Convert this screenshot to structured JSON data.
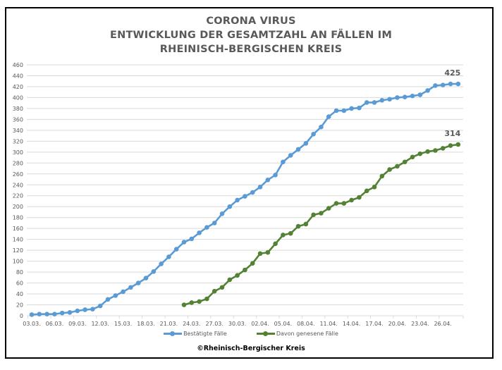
{
  "chart_data": {
    "type": "line",
    "title_lines": [
      "CORONA VIRUS",
      "ENTWICKLUNG DER GESAMTZAHL AN FÄLLEN IM",
      "RHEINISCH-BERGISCHEN KREIS"
    ],
    "xlabel": "",
    "ylabel": "",
    "ylim": [
      0,
      460
    ],
    "y_step": 20,
    "grid": true,
    "x": [
      "03.03.",
      "04.03.",
      "05.03.",
      "06.03.",
      "07.03.",
      "08.03.",
      "09.03.",
      "10.03.",
      "11.03.",
      "12.03.",
      "13.03.",
      "14.03.",
      "15.03.",
      "16.03.",
      "17.03.",
      "18.03.",
      "19.03.",
      "20.03.",
      "21.03.",
      "22.03.",
      "23.03.",
      "24.03.",
      "25.03.",
      "26.03.",
      "27.03.",
      "28.03.",
      "29.03.",
      "30.03.",
      "31.03.",
      "01.04.",
      "02.04.",
      "03.04.",
      "04.04.",
      "05.04.",
      "06.04.",
      "07.04.",
      "08.04.",
      "09.04.",
      "10.04.",
      "11.04.",
      "12.04.",
      "13.04.",
      "14.04.",
      "15.04.",
      "16.04.",
      "17.04.",
      "18.04.",
      "19.04.",
      "20.04.",
      "21.04.",
      "22.04.",
      "23.04.",
      "24.04.",
      "25.04.",
      "26.04.",
      "27.04.",
      "28.04."
    ],
    "x_tick_labels": [
      "03.03.",
      "06.03.",
      "09.03.",
      "12.03.",
      "15.03.",
      "18.03.",
      "21.03.",
      "24.03.",
      "27.03.",
      "30.03.",
      "02.04.",
      "05.04.",
      "08.04.",
      "11.04.",
      "14.04.",
      "17.04.",
      "20.04.",
      "23.04.",
      "26.04."
    ],
    "y_tick_labels": [
      "0",
      "20",
      "40",
      "60",
      "80",
      "100",
      "120",
      "140",
      "160",
      "180",
      "200",
      "220",
      "240",
      "260",
      "280",
      "300",
      "320",
      "340",
      "360",
      "380",
      "400",
      "420",
      "440",
      "460"
    ],
    "series": [
      {
        "name": "Bestätigte Fälle",
        "color": "#5B9BD5",
        "start_index": 0,
        "values": [
          2,
          3,
          3,
          3,
          5,
          6,
          9,
          11,
          12,
          18,
          30,
          37,
          44,
          52,
          60,
          69,
          81,
          95,
          108,
          122,
          135,
          141,
          152,
          162,
          170,
          187,
          200,
          212,
          219,
          226,
          236,
          249,
          258,
          282,
          294,
          305,
          316,
          333,
          346,
          365,
          376,
          376,
          380,
          381,
          391,
          391,
          395,
          397,
          400,
          401,
          403,
          405,
          413,
          422,
          423,
          425,
          425
        ],
        "end_label": "425"
      },
      {
        "name": "Davon genesene Fälle",
        "color": "#548235",
        "start_index": 20,
        "values": [
          20,
          24,
          26,
          31,
          45,
          52,
          66,
          74,
          84,
          96,
          114,
          116,
          132,
          148,
          151,
          164,
          168,
          185,
          188,
          197,
          206,
          206,
          212,
          217,
          229,
          236,
          256,
          268,
          274,
          282,
          291,
          297,
          301,
          303,
          307,
          312,
          314
        ],
        "end_label": "314"
      }
    ],
    "legend_position": "bottom"
  },
  "footer": {
    "copyright": "©Rheinisch-Bergischer Kreis"
  }
}
